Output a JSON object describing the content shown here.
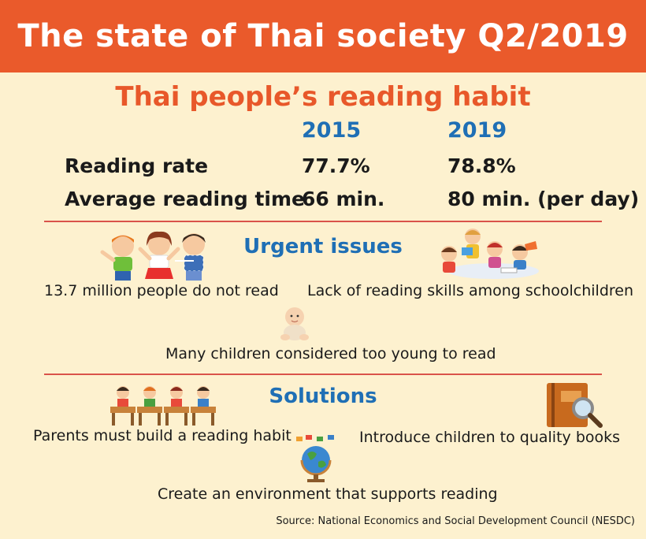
{
  "title": "The state of Thai society Q2/2019",
  "subtitle": "Thai people’s reading habit",
  "stats": {
    "years": [
      "2015",
      "2019"
    ],
    "rows": [
      {
        "label": "Reading rate",
        "values": [
          "77.7%",
          "78.8%"
        ]
      },
      {
        "label": "Average reading time",
        "values": [
          "66 min.",
          "80 min. (per day)"
        ]
      }
    ]
  },
  "urgent": {
    "title": "Urgent issues",
    "items": [
      {
        "text": "13.7 million people do not read",
        "icon": "three-children-icon"
      },
      {
        "text": "Lack of reading skills among schoolchildren",
        "icon": "children-reading-icon"
      },
      {
        "text": "Many children considered too young to read",
        "icon": "baby-icon"
      }
    ]
  },
  "solutions": {
    "title": "Solutions",
    "items": [
      {
        "text": "Parents must build a reading habit",
        "icon": "students-at-desks-icon"
      },
      {
        "text": "Introduce children to quality books",
        "icon": "book-magnifier-icon"
      },
      {
        "text": "Create an environment that supports reading",
        "icon": "globe-icon"
      }
    ]
  },
  "source": "Source: National Economics and Social Development Council (NESDC)",
  "colors": {
    "header": "#ea5a2b",
    "background": "#fdf1cf",
    "accent": "#1f6fb5",
    "subtitle": "#e8582a",
    "divider": "#d9534a"
  }
}
